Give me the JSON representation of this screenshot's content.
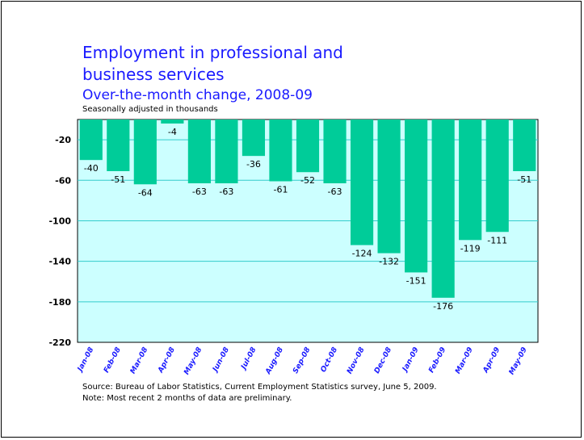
{
  "title": "Employment in professional and business services",
  "subtitle": "Over-the-month change, 2008-09",
  "units": "Seasonally adjusted in thousands",
  "source": "Source:  Bureau of Labor Statistics, Current Employment Statistics survey, June 5, 2009.",
  "note": "Note:  Most recent 2 months of data are preliminary.",
  "colors": {
    "bar": "#00cc99",
    "plot_background": "#ccffff",
    "grid": "#33cccc",
    "title": "#1a1aff"
  },
  "chart_data": {
    "type": "bar",
    "categories": [
      "Jan-08",
      "Feb-08",
      "Mar-08",
      "Apr-08",
      "May-08",
      "Jun-08",
      "Jul-08",
      "Aug-08",
      "Sep-08",
      "Oct-08",
      "Nov-08",
      "Dec-08",
      "Jan-09",
      "Feb-09",
      "Mar-09",
      "Apr-09",
      "May-09"
    ],
    "values": [
      -40,
      -51,
      -64,
      -4,
      -63,
      -63,
      -36,
      -61,
      -52,
      -63,
      -124,
      -132,
      -151,
      -176,
      -119,
      -111,
      -51
    ],
    "ylim": [
      -220,
      0
    ],
    "yticks": [
      -20,
      -60,
      -100,
      -140,
      -180,
      -220
    ],
    "grid": true
  }
}
